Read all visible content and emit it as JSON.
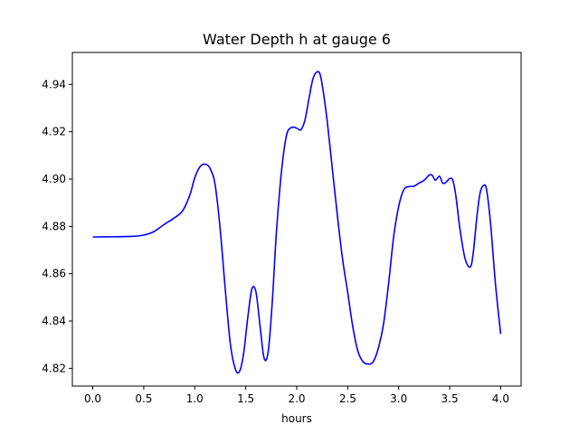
{
  "chart_data": {
    "type": "line",
    "title": "Water Depth h at gauge 6",
    "xlabel": "hours",
    "ylabel": "",
    "xlim": [
      -0.2,
      4.2
    ],
    "ylim": [
      4.8125,
      4.9535
    ],
    "xticks": [
      0.0,
      0.5,
      1.0,
      1.5,
      2.0,
      2.5,
      3.0,
      3.5,
      4.0
    ],
    "xtick_labels": [
      "0.0",
      "0.5",
      "1.0",
      "1.5",
      "2.0",
      "2.5",
      "3.0",
      "3.5",
      "4.0"
    ],
    "yticks": [
      4.82,
      4.84,
      4.86,
      4.88,
      4.9,
      4.92,
      4.94
    ],
    "ytick_labels": [
      "4.82",
      "4.84",
      "4.86",
      "4.88",
      "4.90",
      "4.92",
      "4.94"
    ],
    "grid": false,
    "series": [
      {
        "color": "#0000ff",
        "x": [
          0.0,
          0.2,
          0.4,
          0.5,
          0.6,
          0.7,
          0.8,
          0.88,
          0.95,
          1.0,
          1.05,
          1.1,
          1.15,
          1.2,
          1.25,
          1.3,
          1.35,
          1.4,
          1.44,
          1.48,
          1.52,
          1.56,
          1.6,
          1.64,
          1.68,
          1.72,
          1.76,
          1.8,
          1.85,
          1.9,
          1.95,
          2.0,
          2.04,
          2.08,
          2.12,
          2.16,
          2.2,
          2.23,
          2.26,
          2.3,
          2.35,
          2.4,
          2.45,
          2.5,
          2.55,
          2.6,
          2.65,
          2.7,
          2.75,
          2.8,
          2.85,
          2.9,
          2.95,
          3.0,
          3.05,
          3.1,
          3.15,
          3.2,
          3.25,
          3.3,
          3.33,
          3.36,
          3.4,
          3.43,
          3.46,
          3.5,
          3.53,
          3.56,
          3.6,
          3.65,
          3.7,
          3.73,
          3.77,
          3.8,
          3.83,
          3.86,
          3.9,
          3.95,
          4.0
        ],
        "y": [
          4.8755,
          4.8756,
          4.8758,
          4.8763,
          4.8778,
          4.8808,
          4.8836,
          4.8865,
          4.893,
          4.9005,
          4.9051,
          4.9063,
          4.9045,
          4.8975,
          4.8785,
          4.853,
          4.83,
          4.8195,
          4.8188,
          4.8265,
          4.8415,
          4.8535,
          4.8523,
          4.838,
          4.8243,
          4.827,
          4.848,
          4.877,
          4.903,
          4.9185,
          4.9218,
          4.9215,
          4.9208,
          4.9248,
          4.934,
          4.9425,
          4.9453,
          4.9441,
          4.937,
          4.924,
          4.904,
          4.884,
          4.866,
          4.852,
          4.8375,
          4.8272,
          4.8228,
          4.8218,
          4.8228,
          4.8285,
          4.8385,
          4.8555,
          4.8755,
          4.8885,
          4.8955,
          4.8968,
          4.897,
          4.8983,
          4.8995,
          4.9017,
          4.9015,
          4.8995,
          4.9012,
          4.8983,
          4.8985,
          4.9002,
          4.8995,
          4.893,
          4.879,
          4.8665,
          4.8628,
          4.8685,
          4.8855,
          4.8945,
          4.8972,
          4.8958,
          4.8815,
          4.855,
          4.8345
        ]
      }
    ]
  }
}
